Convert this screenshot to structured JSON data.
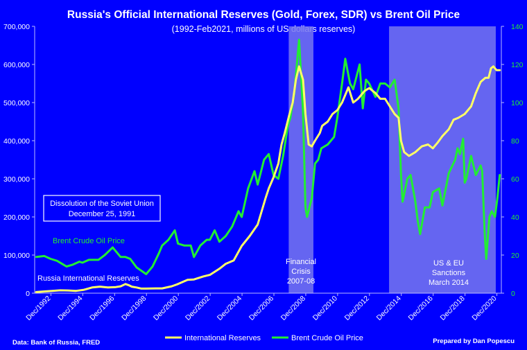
{
  "chart_data": {
    "type": "line",
    "title": "Russia's Official International Reserves (Gold, Forex, SDR)  vs Brent Oil Price",
    "subtitle": "(1992-Feb2021, millions of US dollars reserves)",
    "x_range": [
      1991.9,
      2021.2
    ],
    "y_left": {
      "range": [
        0,
        700000
      ],
      "ticks": [
        0,
        100000,
        200000,
        300000,
        400000,
        500000,
        600000,
        700000
      ],
      "tick_labels": [
        "0",
        "100,000",
        "200,000",
        "300,000",
        "400,000",
        "500,000",
        "600,000",
        "700,000"
      ]
    },
    "y_right": {
      "range": [
        0,
        140
      ],
      "ticks": [
        0,
        20,
        40,
        60,
        80,
        100,
        120,
        140
      ],
      "tick_labels": [
        "0",
        "20",
        "40",
        "60",
        "80",
        "100",
        "120",
        "140"
      ]
    },
    "x_ticks": [
      {
        "x": 1992.92,
        "label": "Dec/1992"
      },
      {
        "x": 1994.92,
        "label": "Dec/1994"
      },
      {
        "x": 1996.92,
        "label": "Dec/1996"
      },
      {
        "x": 1998.92,
        "label": "Dec/1998"
      },
      {
        "x": 2000.92,
        "label": "Dec/2000"
      },
      {
        "x": 2002.92,
        "label": "Dec/2002"
      },
      {
        "x": 2004.92,
        "label": "Dec/2004"
      },
      {
        "x": 2006.92,
        "label": "Dec/2006"
      },
      {
        "x": 2008.92,
        "label": "Dec/2008"
      },
      {
        "x": 2010.92,
        "label": "Dec/2010"
      },
      {
        "x": 2012.92,
        "label": "Dec/2012"
      },
      {
        "x": 2014.92,
        "label": "Dec/2014"
      },
      {
        "x": 2016.92,
        "label": "Dec/2016"
      },
      {
        "x": 2018.92,
        "label": "Dec/2018"
      },
      {
        "x": 2020.92,
        "label": "Dec/2020"
      }
    ],
    "shaded_regions": [
      {
        "name": "financial-crisis",
        "x_start": 2007.85,
        "x_end": 2009.4
      },
      {
        "name": "sanctions",
        "x_start": 2014.15,
        "x_end": 2020.85
      }
    ],
    "series": [
      {
        "name": "International Reserves",
        "axis": "left",
        "color": "#FFFF66",
        "points": [
          [
            1992.0,
            3000
          ],
          [
            1992.5,
            4500
          ],
          [
            1993.0,
            6000
          ],
          [
            1993.5,
            7500
          ],
          [
            1994.0,
            7000
          ],
          [
            1994.5,
            6000
          ],
          [
            1995.0,
            9000
          ],
          [
            1995.5,
            15000
          ],
          [
            1996.0,
            17000
          ],
          [
            1996.5,
            15000
          ],
          [
            1997.0,
            16000
          ],
          [
            1997.3,
            18000
          ],
          [
            1997.6,
            24000
          ],
          [
            1997.8,
            21000
          ],
          [
            1998.0,
            17000
          ],
          [
            1998.3,
            15000
          ],
          [
            1998.6,
            12000
          ],
          [
            1998.9,
            12000
          ],
          [
            1999.5,
            12500
          ],
          [
            1999.9,
            12500
          ],
          [
            2000.5,
            18000
          ],
          [
            2000.9,
            24000
          ],
          [
            2001.5,
            35000
          ],
          [
            2001.9,
            36000
          ],
          [
            2002.5,
            44000
          ],
          [
            2002.9,
            48000
          ],
          [
            2003.5,
            64000
          ],
          [
            2003.9,
            77000
          ],
          [
            2004.4,
            86000
          ],
          [
            2004.9,
            124000
          ],
          [
            2005.4,
            150000
          ],
          [
            2005.9,
            180000
          ],
          [
            2006.4,
            250000
          ],
          [
            2006.6,
            275000
          ],
          [
            2006.9,
            304000
          ],
          [
            2007.2,
            340000
          ],
          [
            2007.4,
            390000
          ],
          [
            2007.6,
            420000
          ],
          [
            2007.9,
            470000
          ],
          [
            2008.1,
            500000
          ],
          [
            2008.3,
            560000
          ],
          [
            2008.5,
            595000
          ],
          [
            2008.75,
            560000
          ],
          [
            2008.9,
            470000
          ],
          [
            2009.1,
            390000
          ],
          [
            2009.3,
            385000
          ],
          [
            2009.5,
            400000
          ],
          [
            2009.8,
            420000
          ],
          [
            2009.95,
            439000
          ],
          [
            2010.3,
            450000
          ],
          [
            2010.6,
            470000
          ],
          [
            2010.9,
            480000
          ],
          [
            2011.2,
            500000
          ],
          [
            2011.6,
            540000
          ],
          [
            2011.9,
            500000
          ],
          [
            2012.2,
            510000
          ],
          [
            2012.6,
            530000
          ],
          [
            2012.9,
            538000
          ],
          [
            2013.3,
            525000
          ],
          [
            2013.6,
            510000
          ],
          [
            2013.9,
            510000
          ],
          [
            2014.2,
            490000
          ],
          [
            2014.5,
            470000
          ],
          [
            2014.75,
            460000
          ],
          [
            2014.9,
            400000
          ],
          [
            2015.1,
            370000
          ],
          [
            2015.4,
            360000
          ],
          [
            2015.8,
            370000
          ],
          [
            2016.2,
            385000
          ],
          [
            2016.6,
            390000
          ],
          [
            2016.9,
            380000
          ],
          [
            2017.2,
            395000
          ],
          [
            2017.5,
            412000
          ],
          [
            2017.9,
            430000
          ],
          [
            2018.2,
            455000
          ],
          [
            2018.5,
            460000
          ],
          [
            2018.9,
            470000
          ],
          [
            2019.3,
            490000
          ],
          [
            2019.6,
            525000
          ],
          [
            2019.9,
            554000
          ],
          [
            2020.2,
            565000
          ],
          [
            2020.4,
            565000
          ],
          [
            2020.55,
            590000
          ],
          [
            2020.7,
            595000
          ],
          [
            2020.9,
            585000
          ],
          [
            2021.1,
            585000
          ]
        ]
      },
      {
        "name": "Brent Crude Oil Price",
        "axis": "right",
        "color": "#22EE33",
        "points": [
          [
            1992.0,
            19
          ],
          [
            1992.5,
            19.5
          ],
          [
            1992.9,
            18
          ],
          [
            1993.3,
            17
          ],
          [
            1993.9,
            14
          ],
          [
            1994.3,
            15
          ],
          [
            1994.7,
            16.5
          ],
          [
            1994.9,
            16
          ],
          [
            1995.3,
            17.5
          ],
          [
            1995.9,
            17.5
          ],
          [
            1996.3,
            20
          ],
          [
            1996.8,
            24
          ],
          [
            1996.9,
            23
          ],
          [
            1997.3,
            19
          ],
          [
            1997.6,
            19
          ],
          [
            1997.9,
            18
          ],
          [
            1998.3,
            13.5
          ],
          [
            1998.9,
            10
          ],
          [
            1999.3,
            14
          ],
          [
            1999.7,
            21
          ],
          [
            1999.9,
            25
          ],
          [
            2000.3,
            28
          ],
          [
            2000.7,
            33
          ],
          [
            2000.9,
            26
          ],
          [
            2001.3,
            25
          ],
          [
            2001.7,
            25
          ],
          [
            2001.9,
            19
          ],
          [
            2002.3,
            25
          ],
          [
            2002.7,
            28
          ],
          [
            2002.9,
            28
          ],
          [
            2003.2,
            33
          ],
          [
            2003.5,
            27
          ],
          [
            2003.9,
            30
          ],
          [
            2004.3,
            35
          ],
          [
            2004.7,
            43
          ],
          [
            2004.9,
            40
          ],
          [
            2005.3,
            55
          ],
          [
            2005.7,
            64
          ],
          [
            2005.9,
            57
          ],
          [
            2006.3,
            70
          ],
          [
            2006.6,
            73
          ],
          [
            2006.9,
            62
          ],
          [
            2007.2,
            60
          ],
          [
            2007.5,
            72
          ],
          [
            2007.8,
            88
          ],
          [
            2007.95,
            92
          ],
          [
            2008.2,
            105
          ],
          [
            2008.5,
            133
          ],
          [
            2008.6,
            118
          ],
          [
            2008.75,
            95
          ],
          [
            2008.9,
            45
          ],
          [
            2009.0,
            40
          ],
          [
            2009.3,
            50
          ],
          [
            2009.5,
            68
          ],
          [
            2009.7,
            70
          ],
          [
            2009.9,
            76
          ],
          [
            2010.3,
            78
          ],
          [
            2010.7,
            82
          ],
          [
            2010.9,
            92
          ],
          [
            2011.2,
            110
          ],
          [
            2011.4,
            123
          ],
          [
            2011.7,
            110
          ],
          [
            2011.9,
            107
          ],
          [
            2012.3,
            120
          ],
          [
            2012.5,
            97
          ],
          [
            2012.7,
            112
          ],
          [
            2012.9,
            110
          ],
          [
            2013.3,
            103
          ],
          [
            2013.6,
            110
          ],
          [
            2013.9,
            110
          ],
          [
            2014.2,
            108
          ],
          [
            2014.5,
            112
          ],
          [
            2014.75,
            97
          ],
          [
            2014.9,
            62
          ],
          [
            2015.0,
            48
          ],
          [
            2015.3,
            60
          ],
          [
            2015.5,
            62
          ],
          [
            2015.8,
            48
          ],
          [
            2015.95,
            38
          ],
          [
            2016.1,
            31
          ],
          [
            2016.4,
            45
          ],
          [
            2016.7,
            45
          ],
          [
            2016.9,
            53
          ],
          [
            2017.3,
            55
          ],
          [
            2017.5,
            46
          ],
          [
            2017.9,
            63
          ],
          [
            2018.3,
            70
          ],
          [
            2018.45,
            76
          ],
          [
            2018.6,
            73
          ],
          [
            2018.8,
            81
          ],
          [
            2018.9,
            58
          ],
          [
            2019.0,
            60
          ],
          [
            2019.3,
            72
          ],
          [
            2019.6,
            62
          ],
          [
            2019.9,
            67
          ],
          [
            2020.0,
            64
          ],
          [
            2020.15,
            32
          ],
          [
            2020.25,
            18
          ],
          [
            2020.45,
            40
          ],
          [
            2020.6,
            43
          ],
          [
            2020.8,
            40
          ],
          [
            2020.95,
            50
          ],
          [
            2021.1,
            62
          ]
        ]
      }
    ],
    "legend": {
      "position": "bottom-center",
      "items": [
        {
          "label": "International Reserves",
          "color": "#FFFF66"
        },
        {
          "label": "Brent Crude Oil Price",
          "color": "#22EE33"
        }
      ]
    },
    "annotations": {
      "box_line1": "Dissolution of the Soviet Union",
      "box_line2": "December 25, 1991",
      "oil_label": "Brent Crude  Oil Price",
      "reserves_label": "Russia International Reserves",
      "crisis_line1": "Financial",
      "crisis_line2": "Crisis",
      "crisis_line3": "2007-08",
      "sanctions_line1": "US & EU",
      "sanctions_line2": "Sanctions",
      "sanctions_line3": "March 2014"
    },
    "footer": {
      "source": "Data: Bank of Russia, FRED",
      "credit": "Prepared by Dan Popescu"
    }
  },
  "colors": {
    "background": "#0000FF",
    "reserves": "#FFFF66",
    "oil": "#22EE33",
    "shade": "#7777EE",
    "text": "#FFFFFF",
    "axis": "#BBBBFF"
  }
}
